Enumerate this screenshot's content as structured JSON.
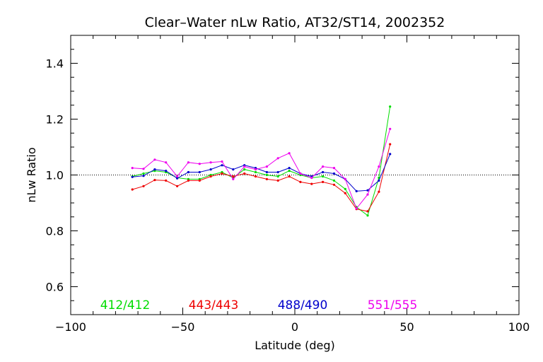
{
  "chart_data": {
    "type": "line",
    "title": "Clear–Water nLw Ratio, AT32/ST14, 2002352",
    "xlabel": "Latitude (deg)",
    "ylabel": "nLw Ratio",
    "xlim": [
      -100,
      100
    ],
    "ylim": [
      0.5,
      1.5
    ],
    "xticks": [
      -100,
      -50,
      0,
      50,
      100
    ],
    "xtick_labels": [
      "−100",
      "−50",
      "0",
      "50",
      "100"
    ],
    "yticks": [
      0.6,
      0.8,
      1.0,
      1.2,
      1.4
    ],
    "ytick_labels": [
      "0.6",
      "0.8",
      "1.0",
      "1.2",
      "1.4"
    ],
    "reference_line": 1.0,
    "grid": false,
    "legend_position": "bottom-inside",
    "x": [
      -72.5,
      -67.5,
      -62.5,
      -57.5,
      -52.5,
      -47.5,
      -42.5,
      -37.5,
      -32.5,
      -27.5,
      -22.5,
      -17.5,
      -12.5,
      -7.5,
      -2.5,
      2.5,
      7.5,
      12.5,
      17.5,
      22.5,
      27.5,
      32.5,
      37.5,
      42.5
    ],
    "series": [
      {
        "name": "412/412",
        "color": "#00dd00",
        "values": [
          0.995,
          1.005,
          1.015,
          1.01,
          0.99,
          0.985,
          0.985,
          1.0,
          1.01,
          0.99,
          1.02,
          1.01,
          1.0,
          0.995,
          1.015,
          1.0,
          0.99,
          0.995,
          0.98,
          0.95,
          0.885,
          0.855,
          0.99,
          1.245
        ]
      },
      {
        "name": "443/443",
        "color": "#ee0000",
        "values": [
          0.948,
          0.96,
          0.982,
          0.98,
          0.96,
          0.98,
          0.98,
          0.995,
          1.005,
          0.995,
          1.005,
          0.995,
          0.985,
          0.98,
          0.995,
          0.975,
          0.968,
          0.975,
          0.965,
          0.935,
          0.878,
          0.87,
          0.94,
          1.11
        ]
      },
      {
        "name": "488/490",
        "color": "#0000cc",
        "values": [
          0.993,
          0.997,
          1.02,
          1.015,
          0.988,
          1.01,
          1.01,
          1.02,
          1.035,
          1.02,
          1.035,
          1.025,
          1.01,
          1.01,
          1.025,
          1.005,
          0.995,
          1.01,
          1.005,
          0.985,
          0.942,
          0.945,
          0.98,
          1.075
        ]
      },
      {
        "name": "551/555",
        "color": "#ee00ee",
        "values": [
          1.025,
          1.022,
          1.055,
          1.045,
          0.995,
          1.045,
          1.04,
          1.045,
          1.048,
          0.985,
          1.03,
          1.02,
          1.03,
          1.06,
          1.078,
          1.005,
          0.99,
          1.03,
          1.025,
          0.985,
          0.88,
          0.93,
          1.03,
          1.165
        ]
      }
    ]
  }
}
